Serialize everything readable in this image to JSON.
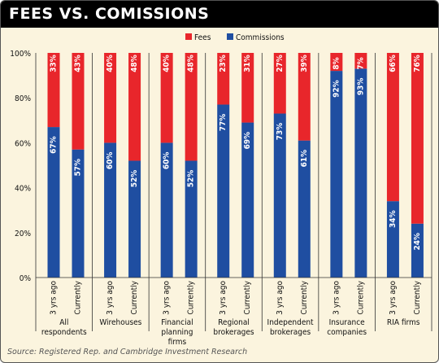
{
  "header": {
    "title": "FEES VS. COMISSIONS"
  },
  "source": "Source: Registered Rep. and Cambridge Investment Research",
  "colors": {
    "fees": "#e8262b",
    "commissions": "#1f4ea1",
    "background": "#fbf4de",
    "header": "#000000"
  },
  "chart_data": {
    "type": "bar",
    "stacked": true,
    "percent": true,
    "title": "FEES VS. COMISSIONS",
    "legend_position": "top-center",
    "grid": false,
    "ylim": [
      0,
      100
    ],
    "y_ticks": [
      "0%",
      "20%",
      "40%",
      "60%",
      "80%",
      "100%"
    ],
    "groups": [
      {
        "label": [
          "All",
          "respondents"
        ],
        "bars": [
          {
            "period": "3 yrs ago",
            "commissions": 67,
            "fees": 33
          },
          {
            "period": "Currently",
            "commissions": 57,
            "fees": 43
          }
        ]
      },
      {
        "label": [
          "Wirehouses"
        ],
        "bars": [
          {
            "period": "3 yrs ago",
            "commissions": 60,
            "fees": 40
          },
          {
            "period": "Currently",
            "commissions": 52,
            "fees": 48
          }
        ]
      },
      {
        "label": [
          "Financial",
          "planning",
          "firms"
        ],
        "bars": [
          {
            "period": "3 yrs ago",
            "commissions": 60,
            "fees": 40
          },
          {
            "period": "Currently",
            "commissions": 52,
            "fees": 48
          }
        ]
      },
      {
        "label": [
          "Regional",
          "brokerages"
        ],
        "bars": [
          {
            "period": "3 yrs ago",
            "commissions": 77,
            "fees": 23
          },
          {
            "period": "Currently",
            "commissions": 69,
            "fees": 31
          }
        ]
      },
      {
        "label": [
          "Independent",
          "brokerages"
        ],
        "bars": [
          {
            "period": "3 yrs ago",
            "commissions": 73,
            "fees": 27
          },
          {
            "period": "Currently",
            "commissions": 61,
            "fees": 39
          }
        ]
      },
      {
        "label": [
          "Insurance",
          "companies"
        ],
        "bars": [
          {
            "period": "3 yrs ago",
            "commissions": 92,
            "fees": 8
          },
          {
            "period": "Currently",
            "commissions": 93,
            "fees": 7
          }
        ]
      },
      {
        "label": [
          "RIA firms"
        ],
        "bars": [
          {
            "period": "3 yrs ago",
            "commissions": 34,
            "fees": 66
          },
          {
            "period": "Currently",
            "commissions": 24,
            "fees": 76
          }
        ]
      }
    ],
    "series": [
      {
        "name": "Fees"
      },
      {
        "name": "Commissions"
      }
    ]
  }
}
